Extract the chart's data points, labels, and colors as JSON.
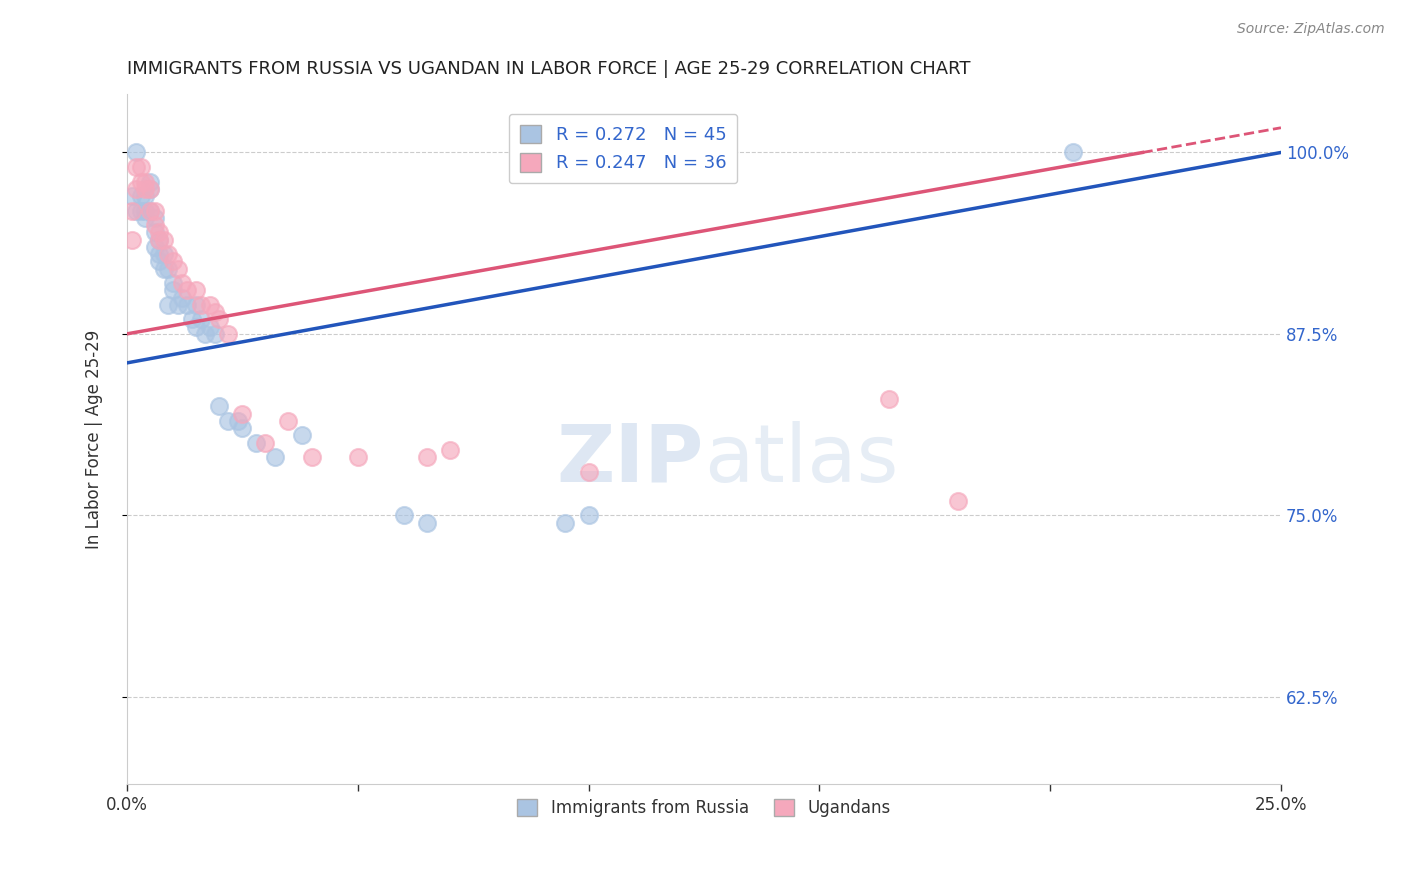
{
  "title": "IMMIGRANTS FROM RUSSIA VS UGANDAN IN LABOR FORCE | AGE 25-29 CORRELATION CHART",
  "source": "Source: ZipAtlas.com",
  "ylabel": "In Labor Force | Age 25-29",
  "xlim": [
    0.0,
    0.25
  ],
  "ylim": [
    0.565,
    1.04
  ],
  "ytick_right_labels": [
    "100.0%",
    "87.5%",
    "75.0%",
    "62.5%"
  ],
  "ytick_right_values": [
    1.0,
    0.875,
    0.75,
    0.625
  ],
  "xticks": [
    0.0,
    0.05,
    0.1,
    0.15,
    0.2,
    0.25
  ],
  "xtick_labels": [
    "0.0%",
    "",
    "",
    "",
    "",
    "25.0%"
  ],
  "russia_R": 0.272,
  "russia_N": 45,
  "uganda_R": 0.247,
  "uganda_N": 36,
  "russia_color": "#aac4e2",
  "uganda_color": "#f5a8bc",
  "russia_line_color": "#2255bb",
  "uganda_line_color": "#dd5577",
  "background_color": "#ffffff",
  "grid_color": "#cccccc",
  "watermark_zip": "ZIP",
  "watermark_atlas": "atlas",
  "russia_x": [
    0.001,
    0.002,
    0.002,
    0.003,
    0.003,
    0.004,
    0.004,
    0.004,
    0.005,
    0.005,
    0.005,
    0.006,
    0.006,
    0.006,
    0.007,
    0.007,
    0.007,
    0.008,
    0.008,
    0.009,
    0.009,
    0.01,
    0.01,
    0.011,
    0.012,
    0.013,
    0.014,
    0.015,
    0.015,
    0.016,
    0.017,
    0.018,
    0.019,
    0.02,
    0.022,
    0.024,
    0.025,
    0.028,
    0.032,
    0.038,
    0.06,
    0.065,
    0.095,
    0.1,
    0.205
  ],
  "russia_y": [
    0.97,
    0.96,
    1.0,
    0.97,
    0.96,
    0.97,
    0.96,
    0.955,
    0.98,
    0.975,
    0.96,
    0.955,
    0.945,
    0.935,
    0.94,
    0.93,
    0.925,
    0.93,
    0.92,
    0.92,
    0.895,
    0.91,
    0.905,
    0.895,
    0.9,
    0.895,
    0.885,
    0.895,
    0.88,
    0.885,
    0.875,
    0.88,
    0.875,
    0.825,
    0.815,
    0.815,
    0.81,
    0.8,
    0.79,
    0.805,
    0.75,
    0.745,
    0.745,
    0.75,
    1.0
  ],
  "uganda_x": [
    0.001,
    0.001,
    0.002,
    0.002,
    0.003,
    0.003,
    0.004,
    0.004,
    0.005,
    0.005,
    0.006,
    0.006,
    0.007,
    0.007,
    0.008,
    0.009,
    0.01,
    0.011,
    0.012,
    0.013,
    0.015,
    0.016,
    0.018,
    0.019,
    0.02,
    0.022,
    0.025,
    0.03,
    0.035,
    0.04,
    0.05,
    0.065,
    0.07,
    0.1,
    0.165,
    0.18
  ],
  "uganda_y": [
    0.96,
    0.94,
    0.99,
    0.975,
    0.99,
    0.98,
    0.98,
    0.975,
    0.975,
    0.96,
    0.96,
    0.95,
    0.945,
    0.94,
    0.94,
    0.93,
    0.925,
    0.92,
    0.91,
    0.905,
    0.905,
    0.895,
    0.895,
    0.89,
    0.885,
    0.875,
    0.82,
    0.8,
    0.815,
    0.79,
    0.79,
    0.79,
    0.795,
    0.78,
    0.83,
    0.76
  ],
  "russia_line_x0": 0.0,
  "russia_line_y0": 0.855,
  "russia_line_x1": 0.25,
  "russia_line_y1": 1.0,
  "uganda_line_x0": 0.0,
  "uganda_line_y0": 0.875,
  "uganda_line_x1": 0.22,
  "uganda_line_y1": 1.0
}
